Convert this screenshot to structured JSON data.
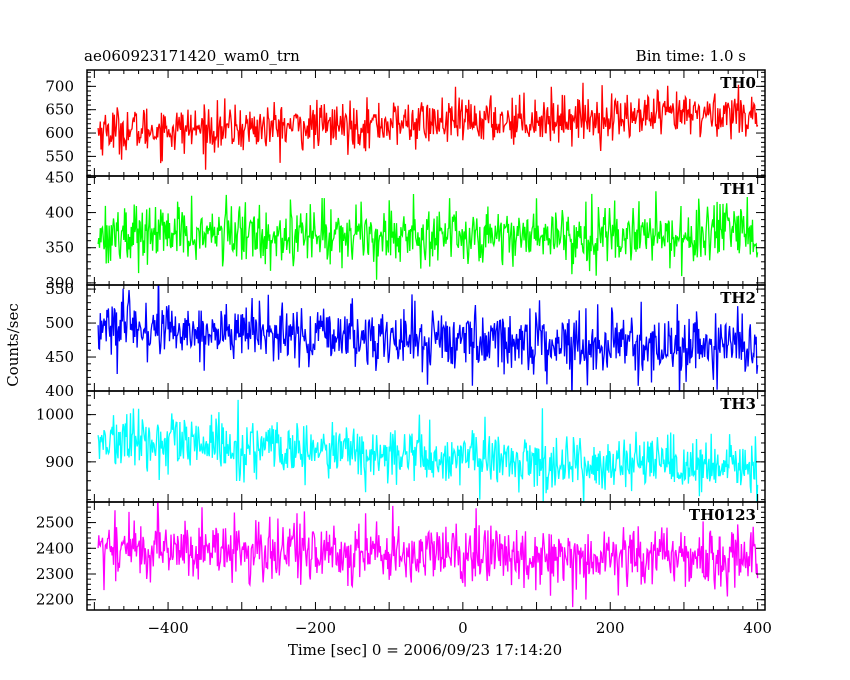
{
  "chart_data": {
    "type": "line",
    "title_left": "ae060923171420_wam0_trn",
    "title_right": "Bin time: 1.0 s",
    "xlabel": "Time [sec] 0 = 2006/09/23 17:14:20",
    "ylabel": "Counts/sec",
    "xlim": [
      -510,
      410
    ],
    "x_ticks": [
      -400,
      -200,
      0,
      200,
      400
    ],
    "grid": false,
    "panels": [
      {
        "name": "TH0",
        "color": "#ff0000",
        "ylim": [
          508,
          735
        ],
        "y_ticks": [
          550,
          600,
          650,
          700
        ],
        "trend": {
          "x": [
            -495,
            -300,
            -100,
            100,
            300,
            400
          ],
          "y": [
            605,
            610,
            620,
            630,
            638,
            645
          ]
        },
        "noise_sd": 25
      },
      {
        "name": "TH1",
        "color": "#00ff00",
        "ylim": [
          297,
          452
        ],
        "y_ticks": [
          300,
          350,
          400,
          450
        ],
        "trend": {
          "x": [
            -495,
            400
          ],
          "y": [
            370,
            368
          ]
        },
        "noise_sd": 21
      },
      {
        "name": "TH2",
        "color": "#0000ff",
        "ylim": [
          400,
          556
        ],
        "y_ticks": [
          400,
          450,
          500,
          550
        ],
        "trend": {
          "x": [
            -495,
            -300,
            -100,
            100,
            300,
            400
          ],
          "y": [
            495,
            485,
            477,
            473,
            465,
            465
          ]
        },
        "noise_sd": 22
      },
      {
        "name": "TH3",
        "color": "#00ffff",
        "ylim": [
          815,
          1050
        ],
        "y_ticks": [
          900,
          1000
        ],
        "trend": {
          "x": [
            -495,
            -300,
            -100,
            100,
            300,
            400
          ],
          "y": [
            945,
            930,
            915,
            900,
            888,
            890
          ]
        },
        "noise_sd": 30
      },
      {
        "name": "TH0123",
        "color": "#ff00ff",
        "ylim": [
          2160,
          2580
        ],
        "y_ticks": [
          2200,
          2300,
          2400,
          2500
        ],
        "trend": {
          "x": [
            -495,
            -300,
            0,
            400
          ],
          "y": [
            2405,
            2390,
            2375,
            2365
          ]
        },
        "noise_sd": 60
      }
    ]
  }
}
